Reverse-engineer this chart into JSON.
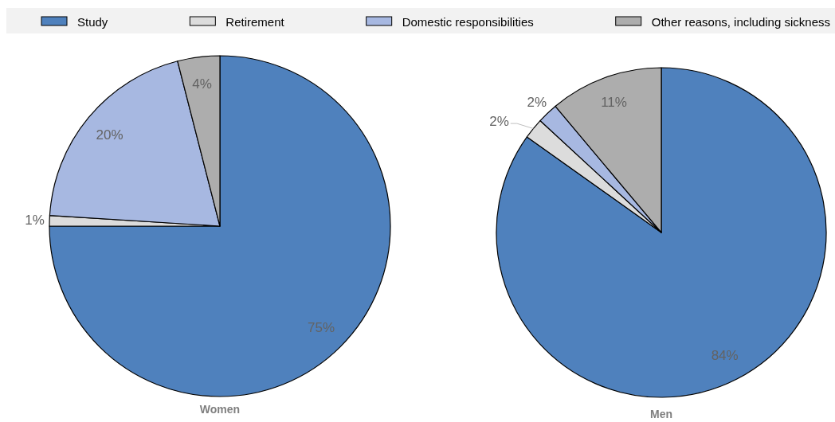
{
  "chart_data": {
    "type": "pie",
    "categories": [
      "Study",
      "Retirement",
      "Domestic responsibilities",
      "Other reasons, including sickness"
    ],
    "colors": [
      "#4f81bd",
      "#dcdcdc",
      "#a7b8e1",
      "#adadad"
    ],
    "legend": "top",
    "series": [
      {
        "name": "Women",
        "values": [
          75,
          1,
          20,
          4
        ],
        "value_labels": [
          "75%",
          "1%",
          "20%",
          "4%"
        ]
      },
      {
        "name": "Men",
        "values": [
          84,
          2,
          2,
          11
        ],
        "value_labels": [
          "84%",
          "2%",
          "2%",
          "11%"
        ]
      }
    ]
  }
}
